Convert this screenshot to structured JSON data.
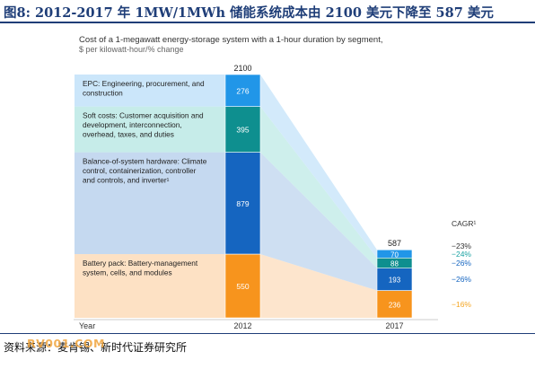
{
  "figure": {
    "title": "图8:   2012-2017 年 1MW/1MWh 储能系统成本由 2100 美元下降至 587 美元",
    "source": "资料来源：麦肯锡、新时代证券研究所",
    "watermark": "RV001.COM"
  },
  "chart_data": {
    "type": "bar",
    "title": "Cost of a 1-megawatt energy-storage system with a 1-hour duration by segment,",
    "subtitle": "$ per kilowatt-hour/% change",
    "xlabel": "Year",
    "categories": [
      "2012",
      "2017"
    ],
    "totals": [
      2100,
      587
    ],
    "cagr_header": "CAGR¹",
    "series": [
      {
        "key": "battery",
        "name": "Battery pack:",
        "desc": "Battery-management system, cells, and modules",
        "values": [
          550,
          236
        ],
        "cagr": "−16%",
        "color": "#f7941d",
        "band": "#fde1c4",
        "cagr_color": "#f5a623"
      },
      {
        "key": "bos",
        "name": "Balance-of-system hardware:",
        "desc": "Climate control, containerization, controller and controls, and inverter¹",
        "values": [
          879,
          193
        ],
        "cagr": "−26%",
        "color": "#1565c0",
        "band": "#c5d9f0",
        "cagr_color": "#1565c0"
      },
      {
        "key": "soft",
        "name": "Soft costs:",
        "desc": "Customer acquisition and development, interconnection, overhead, taxes, and duties",
        "values": [
          395,
          88
        ],
        "cagr": "−26%",
        "color": "#0e8f8f",
        "band": "#c6ece9",
        "cagr_color": "#1565c0"
      },
      {
        "key": "epc",
        "name": "EPC:",
        "desc": "Engineering, procurement, and construction",
        "values": [
          276,
          70
        ],
        "cagr": "−24%",
        "color": "#2196e8",
        "band": "#cbe6fa",
        "cagr_color": "#1ca3a3"
      }
    ],
    "total_cagr": "−23%",
    "colors": {
      "battery": "#f7941d",
      "bos": "#1565c0",
      "soft": "#0e8f8f",
      "epc": "#2196e8"
    }
  }
}
